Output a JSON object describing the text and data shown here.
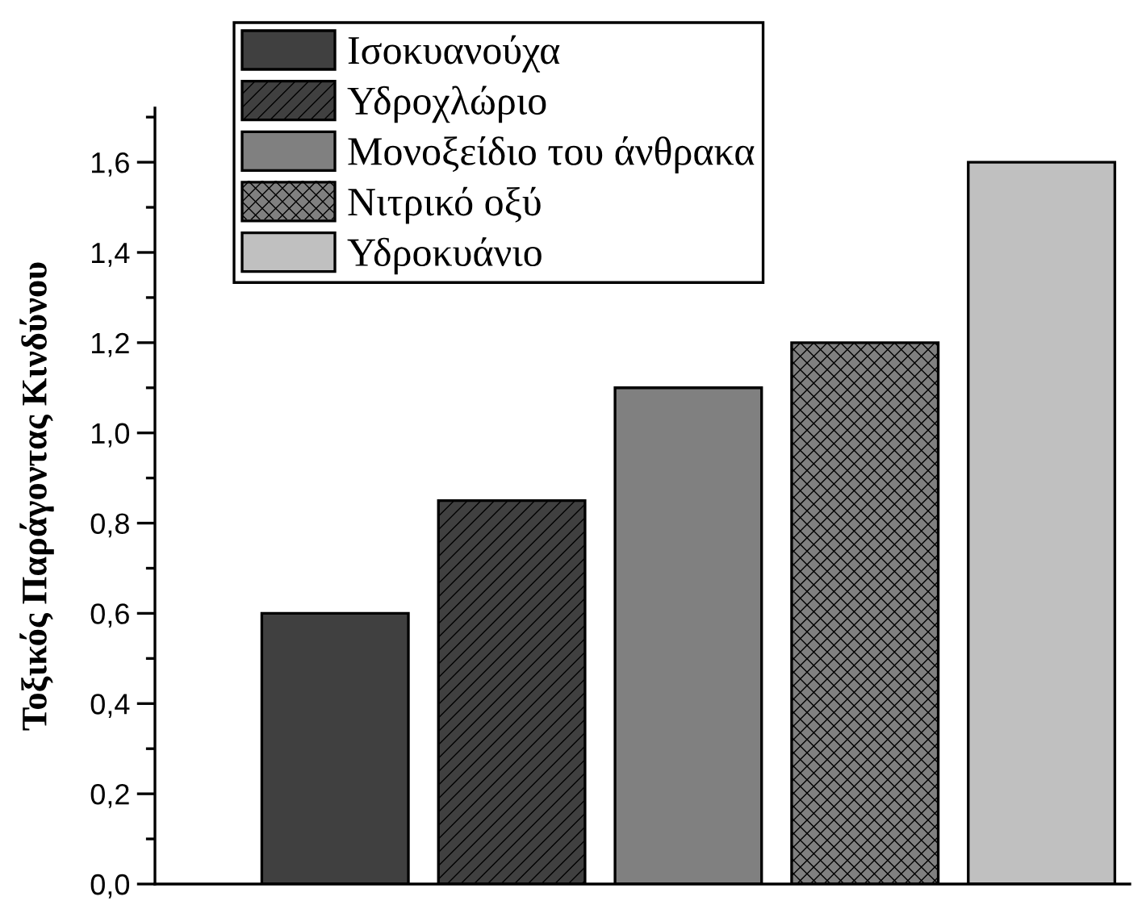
{
  "chart_data": {
    "type": "bar",
    "ylabel": "Τοξικός Παράγοντας Κινδύνου",
    "categories": [
      null,
      null,
      null,
      null,
      null
    ],
    "series": [
      {
        "name": "Ισοκυανούχα",
        "color": "#404040",
        "values": [
          0.6,
          null,
          null,
          null,
          null
        ]
      },
      {
        "name": "Υδροχλώριο",
        "color": "#404040",
        "values": [
          null,
          0.85,
          null,
          null,
          null
        ]
      },
      {
        "name": "Μονοξείδιο του άνθρακα",
        "color": "#808080",
        "values": [
          null,
          null,
          1.1,
          null,
          null
        ]
      },
      {
        "name": "Νιτρικό οξύ",
        "color": "#808080",
        "values": [
          null,
          null,
          null,
          1.2,
          null
        ]
      },
      {
        "name": "Υδροκυάνιο",
        "color": "#c0c0c0",
        "values": [
          null,
          null,
          null,
          null,
          1.6
        ]
      }
    ],
    "ylim": [
      0,
      1.72
    ],
    "yticks": [
      {
        "value": 0,
        "label": "0,0"
      },
      {
        "value": 0.1,
        "label": null
      },
      {
        "value": 0.2,
        "label": "0,2"
      },
      {
        "value": 0.3,
        "label": null
      },
      {
        "value": 0.4,
        "label": "0,4"
      },
      {
        "value": 0.5,
        "label": null
      },
      {
        "value": 0.6,
        "label": "0,6"
      },
      {
        "value": 0.7,
        "label": null
      },
      {
        "value": 0.8,
        "label": "0,8"
      },
      {
        "value": 0.9,
        "label": null
      },
      {
        "value": 1.0,
        "label": "1,0"
      },
      {
        "value": 1.1,
        "label": null
      },
      {
        "value": 1.2,
        "label": "1,2"
      },
      {
        "value": 1.3,
        "label": null
      },
      {
        "value": 1.4,
        "label": "1,4"
      },
      {
        "value": 1.5,
        "label": null
      },
      {
        "value": 1.6,
        "label": "1,6"
      },
      {
        "value": 1.7,
        "label": null
      }
    ],
    "legend": "top left"
  }
}
